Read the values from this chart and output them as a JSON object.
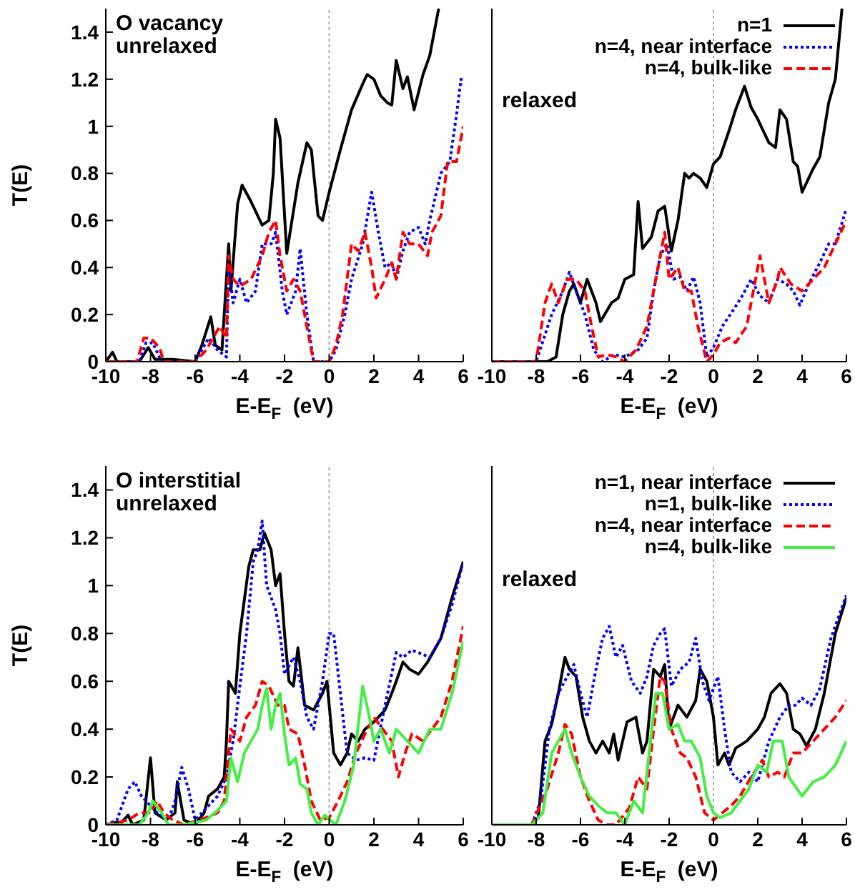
{
  "chart_data": [
    {
      "type": "line",
      "annotations": [
        "O vacancy",
        "unrelaxed"
      ],
      "xlabel": "E-E$_{F}$ (eV)",
      "ylabel": "T(E)",
      "xlim": [
        -10,
        6
      ],
      "xticks": [
        -10,
        -8,
        -6,
        -4,
        -2,
        0,
        2,
        4,
        6
      ],
      "ylim": [
        0,
        1.5
      ],
      "yticks": [
        0,
        0.2,
        0.4,
        0.6,
        0.8,
        1,
        1.2,
        1.4
      ],
      "grid": false,
      "legend": false,
      "marker": "none",
      "ref_lines": [
        {
          "axis": "x",
          "value": 0,
          "color": "#aaaaaa",
          "line_style": "dotted"
        }
      ],
      "series": [
        {
          "color": "#000000",
          "line_style": "solid",
          "x": [
            -10,
            -9.7,
            -9.5,
            -8.5,
            -8.1,
            -7.8,
            -7,
            -6,
            -5.7,
            -5.3,
            -5.1,
            -4.8,
            -4.5,
            -4.4,
            -4.1,
            -3.9,
            -3.5,
            -3,
            -2.7,
            -2.5,
            -2.4,
            -2.2,
            -1.9,
            -1.4,
            -1,
            -0.8,
            -0.5,
            -0.3,
            0,
            0.5,
            1,
            1.5,
            1.7,
            2,
            2.3,
            2.6,
            2.8,
            3,
            3.3,
            3.5,
            3.8,
            4.2,
            4.5,
            4.9
          ],
          "values": [
            0,
            0.04,
            0,
            0,
            0.06,
            0.01,
            0.01,
            0,
            0.07,
            0.19,
            0.07,
            0.05,
            0.5,
            0.3,
            0.67,
            0.75,
            0.68,
            0.58,
            0.6,
            0.8,
            1.03,
            0.95,
            0.46,
            0.76,
            0.93,
            0.9,
            0.62,
            0.6,
            0.72,
            0.9,
            1.07,
            1.18,
            1.22,
            1.2,
            1.13,
            1.1,
            1.09,
            1.28,
            1.16,
            1.21,
            1.07,
            1.22,
            1.3,
            1.5
          ]
        },
        {
          "color": "#0000ff",
          "line_style": "dotted",
          "x": [
            -10,
            -8.5,
            -8.2,
            -7.9,
            -7.5,
            -6,
            -5.4,
            -5,
            -4.6,
            -4.5,
            -4.3,
            -4,
            -3.7,
            -3.3,
            -3,
            -2.6,
            -2.4,
            -2.1,
            -1.9,
            -1.5,
            -1.3,
            -1,
            -0.7,
            0,
            0.3,
            0.7,
            1,
            1.5,
            1.9,
            2.2,
            2.5,
            2.8,
            3,
            3.3,
            3.6,
            4,
            4.3,
            4.5,
            5,
            5.4,
            5.7,
            5.9,
            6
          ],
          "values": [
            0,
            0,
            0.08,
            0.08,
            0,
            0,
            0.1,
            0.05,
            0.02,
            0.4,
            0.25,
            0.35,
            0.25,
            0.3,
            0.5,
            0.5,
            0.55,
            0.3,
            0.2,
            0.3,
            0.48,
            0.2,
            0,
            0,
            0.05,
            0.2,
            0.35,
            0.5,
            0.72,
            0.55,
            0.4,
            0.42,
            0.35,
            0.47,
            0.55,
            0.57,
            0.5,
            0.6,
            0.8,
            0.85,
            1.05,
            1.2,
            1.18
          ]
        },
        {
          "color": "#ff0000",
          "line_style": "dashed",
          "x": [
            -10,
            -8.6,
            -8.3,
            -8,
            -7.6,
            -7.4,
            -6,
            -5.5,
            -4.9,
            -4.6,
            -4.5,
            -4.3,
            -4,
            -3.5,
            -3,
            -2.7,
            -2.4,
            -2.2,
            -1.9,
            -1.6,
            -1.3,
            -1,
            -0.7,
            0,
            0.3,
            0.6,
            1,
            1.3,
            1.6,
            1.9,
            2.1,
            2.5,
            2.8,
            3,
            3.3,
            3.6,
            4,
            4.4,
            4.6,
            5,
            5.3,
            5.7,
            6
          ],
          "values": [
            0,
            0,
            0.1,
            0.1,
            0.06,
            0,
            0,
            0.05,
            0.15,
            0.1,
            0.45,
            0.35,
            0.32,
            0.35,
            0.45,
            0.55,
            0.6,
            0.45,
            0.3,
            0.35,
            0.3,
            0.15,
            0,
            0,
            0.07,
            0.2,
            0.5,
            0.47,
            0.55,
            0.4,
            0.27,
            0.35,
            0.42,
            0.35,
            0.55,
            0.5,
            0.5,
            0.45,
            0.55,
            0.62,
            0.85,
            0.85,
            1
          ]
        }
      ]
    },
    {
      "type": "line",
      "annotations": [
        "relaxed"
      ],
      "xlabel": "E-E$_{F}$ (eV)",
      "xlim": [
        -10,
        6
      ],
      "xticks": [
        -10,
        -8,
        -6,
        -4,
        -2,
        0,
        2,
        4,
        6
      ],
      "ylim": [
        0,
        1.5
      ],
      "yticks": [
        0,
        0.2,
        0.4,
        0.6,
        0.8,
        1,
        1.2,
        1.4
      ],
      "tick_labels": "x",
      "grid": false,
      "legend": "top right",
      "marker": "none",
      "ref_lines": [
        {
          "axis": "x",
          "value": 0,
          "color": "#aaaaaa",
          "line_style": "dotted"
        }
      ],
      "series": [
        {
          "name": "n=1",
          "color": "#000000",
          "line_style": "solid",
          "x": [
            -10,
            -7.5,
            -7.1,
            -6.8,
            -6.5,
            -6.3,
            -6,
            -5.7,
            -5.3,
            -5.1,
            -4.6,
            -4.3,
            -4,
            -3.6,
            -3.4,
            -3.2,
            -2.8,
            -2.5,
            -2.2,
            -1.9,
            -1.6,
            -1.3,
            -1.1,
            -0.9,
            -0.6,
            -0.3,
            0,
            0.3,
            0.7,
            1,
            1.4,
            1.7,
            2,
            2.5,
            2.8,
            3,
            3.3,
            3.6,
            3.8,
            4,
            4.5,
            4.8,
            5.2,
            5.5,
            5.8
          ],
          "values": [
            0,
            0,
            0.02,
            0.2,
            0.3,
            0.33,
            0.25,
            0.35,
            0.25,
            0.17,
            0.25,
            0.27,
            0.35,
            0.37,
            0.68,
            0.48,
            0.53,
            0.64,
            0.66,
            0.47,
            0.6,
            0.8,
            0.78,
            0.8,
            0.78,
            0.74,
            0.84,
            0.87,
            0.98,
            1.07,
            1.17,
            1.08,
            1.03,
            0.93,
            0.91,
            1.07,
            1.03,
            0.85,
            0.83,
            0.72,
            0.82,
            0.87,
            1.1,
            1.2,
            1.5
          ]
        },
        {
          "name": "n=4, near interface",
          "color": "#0000ff",
          "line_style": "dotted",
          "x": [
            -10,
            -8,
            -7.3,
            -6.8,
            -6.5,
            -6.2,
            -5.8,
            -5.4,
            -5,
            -4.5,
            -4,
            -3.4,
            -3,
            -2.7,
            -2.4,
            -2.1,
            -1.8,
            -1.5,
            -1.2,
            -0.9,
            -0.6,
            -0.3,
            0,
            0.4,
            0.9,
            1.3,
            1.7,
            2.1,
            2.5,
            2.9,
            3.3,
            3.6,
            3.9,
            4.3,
            4.8,
            5.2,
            5.5,
            6
          ],
          "values": [
            0,
            0,
            0.2,
            0.3,
            0.38,
            0.3,
            0.2,
            0.05,
            0,
            0.03,
            0.02,
            0.05,
            0.1,
            0.3,
            0.45,
            0.5,
            0.35,
            0.36,
            0.3,
            0.36,
            0.25,
            0.02,
            0.06,
            0.15,
            0.22,
            0.28,
            0.35,
            0.28,
            0.25,
            0.35,
            0.33,
            0.3,
            0.24,
            0.33,
            0.42,
            0.5,
            0.5,
            0.65
          ]
        },
        {
          "name": "n=4, bulk-like",
          "color": "#ff0000",
          "line_style": "dashed",
          "x": [
            -10,
            -8,
            -7.6,
            -7.3,
            -7,
            -6.6,
            -6.2,
            -5.8,
            -5.5,
            -5.2,
            -4.8,
            -4.4,
            -4,
            -3.5,
            -3,
            -2.7,
            -2.4,
            -2.2,
            -2,
            -1.6,
            -1.3,
            -1,
            -0.7,
            -0.3,
            0,
            0.3,
            0.7,
            1,
            1.5,
            1.9,
            2.1,
            2.5,
            2.9,
            3,
            3.5,
            4,
            4.5,
            5,
            5.5,
            6
          ],
          "values": [
            0,
            0,
            0.25,
            0.33,
            0.25,
            0.35,
            0.35,
            0.3,
            0.15,
            0.02,
            0.03,
            0.02,
            0,
            0.05,
            0.15,
            0.3,
            0.45,
            0.55,
            0.35,
            0.4,
            0.3,
            0.3,
            0.15,
            0,
            0.03,
            0.08,
            0.1,
            0.08,
            0.15,
            0.35,
            0.45,
            0.25,
            0.35,
            0.4,
            0.33,
            0.3,
            0.35,
            0.4,
            0.5,
            0.6
          ]
        }
      ]
    },
    {
      "type": "line",
      "annotations": [
        "O interstitial",
        "unrelaxed"
      ],
      "xlabel": "E-E$_{F}$ (eV)",
      "ylabel": "T(E)",
      "xlim": [
        -10,
        6
      ],
      "xticks": [
        -10,
        -8,
        -6,
        -4,
        -2,
        0,
        2,
        4,
        6
      ],
      "ylim": [
        0,
        1.5
      ],
      "yticks": [
        0,
        0.2,
        0.4,
        0.6,
        0.8,
        1,
        1.2,
        1.4
      ],
      "grid": false,
      "legend": false,
      "marker": "none",
      "ref_lines": [
        {
          "axis": "x",
          "value": 0,
          "color": "#aaaaaa",
          "line_style": "dotted"
        }
      ],
      "series": [
        {
          "color": "#000000",
          "line_style": "solid",
          "x": [
            -10,
            -9.6,
            -9.3,
            -9,
            -8.8,
            -8.3,
            -8,
            -7.8,
            -7.3,
            -6.9,
            -6.8,
            -6.5,
            -6,
            -5.6,
            -5.4,
            -5,
            -4.7,
            -4.6,
            -4.5,
            -4.2,
            -4,
            -3.6,
            -3.4,
            -3.1,
            -2.9,
            -2.6,
            -2.4,
            -2.2,
            -2,
            -1.8,
            -1.6,
            -1.4,
            -1.1,
            -0.7,
            -0.3,
            -0.1,
            0.2,
            0.5,
            0.8,
            1,
            1.3,
            1.6,
            2,
            2.5,
            2.8,
            3,
            3.3,
            3.6,
            4,
            4.4,
            5,
            5.5,
            6
          ],
          "values": [
            0,
            0.01,
            0.01,
            0.04,
            0,
            0.02,
            0.28,
            0.05,
            0.02,
            0.05,
            0.18,
            0.02,
            0,
            0.05,
            0.12,
            0.15,
            0.2,
            0.35,
            0.6,
            0.55,
            0.8,
            1.08,
            1.15,
            1.15,
            1.22,
            1.15,
            1,
            1.05,
            0.8,
            0.6,
            0.58,
            0.74,
            0.5,
            0.48,
            0.55,
            0.6,
            0.3,
            0.25,
            0.3,
            0.38,
            0.35,
            0.4,
            0.43,
            0.48,
            0.55,
            0.6,
            0.68,
            0.65,
            0.63,
            0.68,
            0.78,
            0.95,
            1.1
          ]
        },
        {
          "color": "#0000ff",
          "line_style": "dotted",
          "x": [
            -10,
            -9.5,
            -9,
            -8.7,
            -8.4,
            -8,
            -7.7,
            -7.2,
            -6.9,
            -6.6,
            -6.3,
            -6,
            -5.5,
            -5,
            -4.6,
            -4.3,
            -4,
            -3.7,
            -3.4,
            -3.2,
            -3,
            -2.8,
            -2.6,
            -2.4,
            -2.2,
            -2,
            -1.6,
            -1.3,
            -1,
            -0.7,
            -0.3,
            0,
            0.2,
            0.5,
            0.8,
            1.2,
            1.6,
            2,
            2.5,
            3,
            3.3,
            3.7,
            4,
            4.5,
            5,
            5.5,
            6
          ],
          "values": [
            0,
            0.02,
            0.15,
            0.18,
            0.12,
            0.08,
            0.05,
            0.02,
            0.1,
            0.24,
            0.15,
            0.02,
            0.07,
            0.12,
            0.2,
            0.35,
            0.58,
            0.8,
            1.1,
            1.15,
            1.27,
            1,
            0.95,
            0.9,
            0.8,
            0.63,
            0.7,
            0.6,
            0.45,
            0.4,
            0.6,
            0.8,
            0.8,
            0.55,
            0.3,
            0.27,
            0.28,
            0.27,
            0.5,
            0.72,
            0.7,
            0.73,
            0.72,
            0.7,
            0.78,
            0.92,
            1.1
          ]
        },
        {
          "color": "#ff0000",
          "line_style": "dashed",
          "x": [
            -10,
            -9,
            -8.5,
            -8,
            -7.7,
            -7.4,
            -7,
            -6.5,
            -5.5,
            -5,
            -4.7,
            -4.4,
            -4,
            -3.7,
            -3.3,
            -3,
            -2.7,
            -2.3,
            -2,
            -1.8,
            -1.4,
            -1.1,
            -0.8,
            -0.4,
            0,
            0.4,
            0.8,
            1.2,
            1.6,
            2,
            2.4,
            2.8,
            3.1,
            3.4,
            3.7,
            4.2,
            4.6,
            5,
            5.5,
            6
          ],
          "values": [
            0,
            0.02,
            0.05,
            0.05,
            0.1,
            0.05,
            0.02,
            0,
            0.03,
            0.05,
            0.1,
            0.4,
            0.35,
            0.45,
            0.5,
            0.6,
            0.58,
            0.5,
            0.5,
            0.4,
            0.38,
            0.25,
            0.1,
            0.02,
            0.03,
            0.1,
            0.18,
            0.3,
            0.38,
            0.45,
            0.4,
            0.35,
            0.2,
            0.3,
            0.38,
            0.35,
            0.4,
            0.45,
            0.6,
            0.83
          ]
        },
        {
          "color": "#44ee44",
          "line_style": "solid",
          "x": [
            -10,
            -8.5,
            -8.1,
            -7.9,
            -7.5,
            -7.2,
            -6.5,
            -5.5,
            -5,
            -4.6,
            -4.4,
            -4.1,
            -3.8,
            -3.5,
            -3.2,
            -3,
            -2.8,
            -2.6,
            -2.4,
            -2.2,
            -2,
            -1.8,
            -1.5,
            -1.3,
            -1,
            -0.8,
            -0.5,
            -0.2,
            0.3,
            0.7,
            1.1,
            1.5,
            1.8,
            2,
            2.3,
            2.7,
            3,
            3.5,
            4,
            4.5,
            5,
            5.5,
            6
          ],
          "values": [
            0,
            0,
            0.05,
            0.1,
            0.05,
            0,
            0,
            0.02,
            0.06,
            0.1,
            0.28,
            0.18,
            0.3,
            0.35,
            0.4,
            0.5,
            0.57,
            0.4,
            0.5,
            0.55,
            0.38,
            0.25,
            0.28,
            0.17,
            0.15,
            0.05,
            0,
            0.04,
            0,
            0.1,
            0.25,
            0.58,
            0.45,
            0.35,
            0.4,
            0.3,
            0.4,
            0.35,
            0.3,
            0.4,
            0.4,
            0.55,
            0.77
          ]
        }
      ]
    },
    {
      "type": "line",
      "annotations": [
        "relaxed"
      ],
      "xlabel": "E-E$_{F}$ (eV)",
      "xlim": [
        -10,
        6
      ],
      "xticks": [
        -10,
        -8,
        -6,
        -4,
        -2,
        0,
        2,
        4,
        6
      ],
      "ylim": [
        0,
        1.5
      ],
      "yticks": [
        0,
        0.2,
        0.4,
        0.6,
        0.8,
        1,
        1.2,
        1.4
      ],
      "tick_labels": "x",
      "grid": false,
      "legend": "top right",
      "marker": "none",
      "ref_lines": [
        {
          "axis": "x",
          "value": 0,
          "color": "#aaaaaa",
          "line_style": "dotted"
        }
      ],
      "series": [
        {
          "name": "n=1, near interface",
          "color": "#000000",
          "line_style": "solid",
          "x": [
            -10,
            -8.2,
            -7.9,
            -7.6,
            -7.3,
            -7,
            -6.7,
            -6.5,
            -6.2,
            -5.9,
            -5.6,
            -5.3,
            -5,
            -4.7,
            -4.5,
            -4.3,
            -3.9,
            -3.5,
            -3.2,
            -3,
            -2.7,
            -2.4,
            -2.2,
            -2,
            -1.6,
            -1.2,
            -0.8,
            -0.6,
            -0.3,
            0,
            0.2,
            0.5,
            0.7,
            1,
            1.5,
            2,
            2.3,
            2.6,
            3,
            3.3,
            3.6,
            3.9,
            4.2,
            4.6,
            5,
            5.5,
            6
          ],
          "values": [
            0,
            0,
            0.03,
            0.35,
            0.42,
            0.55,
            0.7,
            0.65,
            0.62,
            0.45,
            0.35,
            0.3,
            0.35,
            0.3,
            0.38,
            0.27,
            0.43,
            0.45,
            0.3,
            0.35,
            0.65,
            0.62,
            0.67,
            0.4,
            0.5,
            0.45,
            0.52,
            0.65,
            0.6,
            0.45,
            0.25,
            0.3,
            0.25,
            0.32,
            0.35,
            0.4,
            0.45,
            0.55,
            0.59,
            0.55,
            0.4,
            0.38,
            0.33,
            0.4,
            0.55,
            0.8,
            0.95
          ]
        },
        {
          "name": "n=1, bulk-like",
          "color": "#0000ff",
          "line_style": "dotted",
          "x": [
            -10,
            -8.2,
            -7.8,
            -7.4,
            -7,
            -6.6,
            -6.3,
            -6,
            -5.7,
            -5.3,
            -5,
            -4.7,
            -4.4,
            -4.1,
            -3.7,
            -3.3,
            -3,
            -2.7,
            -2.4,
            -2.2,
            -1.9,
            -1.5,
            -1.1,
            -0.8,
            -0.5,
            -0.2,
            0.2,
            0.5,
            0.8,
            1.2,
            1.6,
            2,
            2.5,
            3,
            3.4,
            3.7,
            4,
            4.4,
            4.8,
            5.3,
            6
          ],
          "values": [
            0,
            0,
            0.1,
            0.4,
            0.55,
            0.62,
            0.67,
            0.55,
            0.45,
            0.65,
            0.78,
            0.83,
            0.7,
            0.75,
            0.6,
            0.55,
            0.62,
            0.75,
            0.8,
            0.82,
            0.58,
            0.65,
            0.68,
            0.78,
            0.6,
            0.52,
            0.62,
            0.4,
            0.22,
            0.18,
            0.22,
            0.18,
            0.35,
            0.45,
            0.5,
            0.5,
            0.53,
            0.5,
            0.57,
            0.78,
            0.96
          ]
        },
        {
          "name": "n=4, near interface",
          "color": "#ff0000",
          "line_style": "dashed",
          "x": [
            -10,
            -8.2,
            -7.5,
            -7,
            -6.7,
            -6.4,
            -6,
            -5.6,
            -5.2,
            -4.8,
            -4.4,
            -3.8,
            -3.4,
            -3,
            -2.7,
            -2.4,
            -2.2,
            -1.9,
            -1.5,
            -1.2,
            -0.8,
            -0.4,
            0,
            0.4,
            0.8,
            1.2,
            1.7,
            2.2,
            2.5,
            2.9,
            3.2,
            3.6,
            4,
            4.5,
            5,
            5.5,
            6
          ],
          "values": [
            0,
            0,
            0.15,
            0.3,
            0.42,
            0.38,
            0.2,
            0.1,
            0.02,
            0,
            0,
            0.07,
            0.2,
            0.15,
            0.4,
            0.62,
            0.6,
            0.4,
            0.3,
            0.28,
            0.2,
            0.05,
            0.02,
            0.05,
            0.08,
            0.12,
            0.2,
            0.27,
            0.2,
            0.22,
            0.2,
            0.3,
            0.3,
            0.35,
            0.4,
            0.45,
            0.52
          ]
        },
        {
          "name": "n=4, bulk-like",
          "color": "#44ee44",
          "line_style": "solid",
          "x": [
            -10,
            -8.2,
            -7.7,
            -7.3,
            -7,
            -6.7,
            -6.4,
            -6,
            -5.6,
            -5.2,
            -4.8,
            -4.4,
            -4,
            -3.6,
            -3.2,
            -2.9,
            -2.6,
            -2.3,
            -2,
            -1.6,
            -1.3,
            -1,
            -0.6,
            -0.3,
            0,
            0.3,
            0.8,
            1.2,
            1.6,
            2,
            2.4,
            2.7,
            3.1,
            3.4,
            4,
            4.5,
            5,
            5.5,
            6
          ],
          "values": [
            0,
            0,
            0.05,
            0.3,
            0.35,
            0.4,
            0.3,
            0.2,
            0.12,
            0.08,
            0.05,
            0.05,
            0,
            0.1,
            0.05,
            0.3,
            0.55,
            0.55,
            0.4,
            0.42,
            0.35,
            0.35,
            0.28,
            0.12,
            0.05,
            0.03,
            0.05,
            0.1,
            0.15,
            0.25,
            0.22,
            0.35,
            0.35,
            0.2,
            0.12,
            0.18,
            0.2,
            0.25,
            0.35
          ]
        }
      ]
    }
  ]
}
